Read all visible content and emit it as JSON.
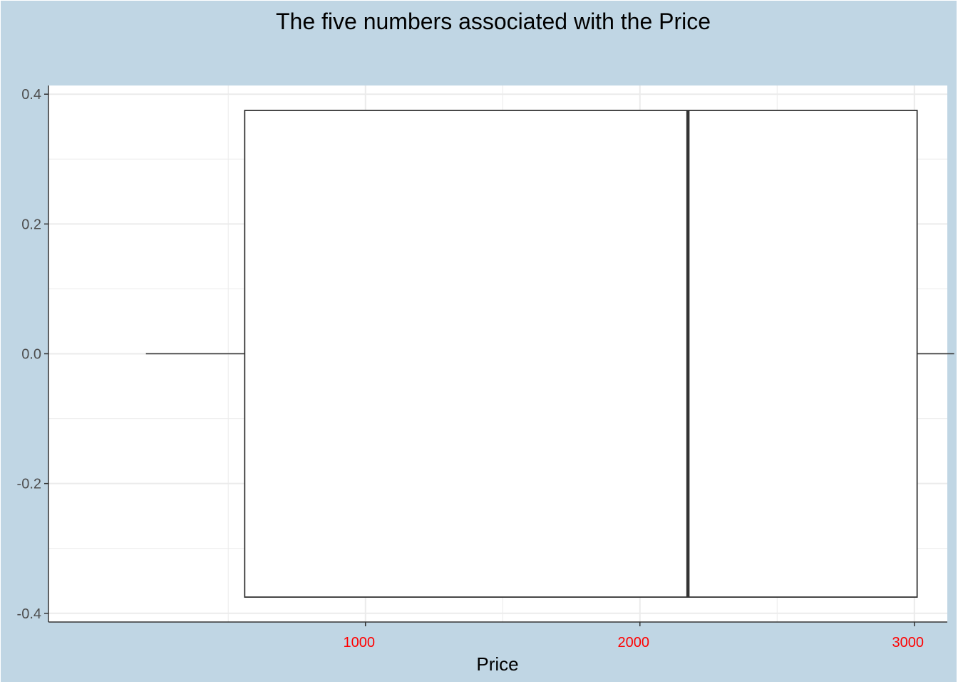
{
  "chart_data": {
    "type": "boxplot",
    "title": "The five numbers associated with the Price",
    "xlabel": "Price",
    "ylabel": "",
    "xlim": [
      -155,
      3120
    ],
    "ylim": [
      -0.4134,
      0.4134
    ],
    "x_ticks": [
      {
        "value": 1000,
        "label": "1000"
      },
      {
        "value": 2000,
        "label": "2000"
      },
      {
        "value": 3000,
        "label": "3000"
      }
    ],
    "x_minor_ticks": [
      500,
      1500,
      2500
    ],
    "y_ticks": [
      {
        "value": 0.4,
        "label": "0.4"
      },
      {
        "value": 0.2,
        "label": "0.2"
      },
      {
        "value": 0.0,
        "label": "0.0"
      },
      {
        "value": -0.2,
        "label": "-0.2"
      },
      {
        "value": -0.4,
        "label": "-0.4"
      }
    ],
    "y_minor_ticks": [
      0.3,
      0.1,
      -0.1,
      -0.3
    ],
    "box": {
      "min": 200,
      "q1": 560,
      "median": 2175,
      "q3": 3010,
      "max": 3145,
      "ymin": -0.375,
      "ymax": 0.375,
      "y_center": 0.0
    },
    "grid": true,
    "legend": "none"
  },
  "style": {
    "background": "#c0d6e4",
    "panel": "#ffffff",
    "grid": "#ebebeb",
    "box_line": "#333333",
    "x_tick_label_color": "#ff0000",
    "y_tick_label_color": "#4d4d4d",
    "axis_line": "#333333"
  }
}
